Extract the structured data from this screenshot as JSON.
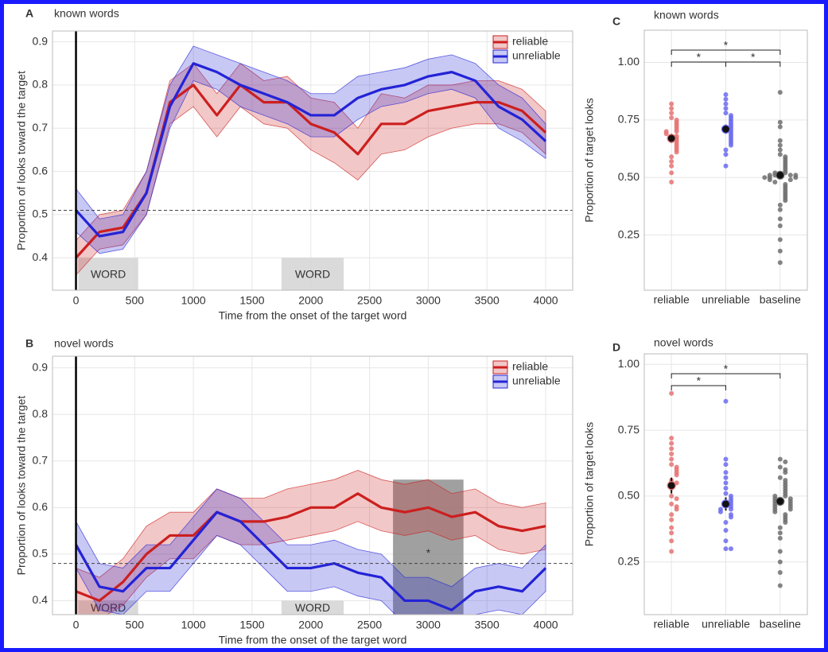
{
  "chart_data": [
    {
      "type": "line",
      "panel": "A",
      "title": "known words",
      "xlabel": "Time from the onset of the target word",
      "ylabel": "Proportion of looks toward the target",
      "x": [
        0,
        200,
        400,
        600,
        800,
        1000,
        1200,
        1400,
        1600,
        1800,
        2000,
        2200,
        2400,
        2600,
        2800,
        3000,
        3200,
        3400,
        3600,
        3800,
        4000
      ],
      "xlim": [
        -200,
        4230
      ],
      "xticks": [
        0,
        500,
        1000,
        1500,
        2000,
        2500,
        3000,
        3500,
        4000
      ],
      "ylim": [
        0.325,
        0.925
      ],
      "yticks": [
        0.4,
        0.5,
        0.6,
        0.7,
        0.8,
        0.9
      ],
      "grid": true,
      "legend": "top-right",
      "reference_line": 0.51,
      "onset_line": 0,
      "regions": [
        {
          "label": "WORD",
          "x": [
            20,
            530
          ],
          "y": [
            0.325,
            0.4
          ],
          "color": "#d4d4d4"
        },
        {
          "label": "WORD",
          "x": [
            1750,
            2280
          ],
          "y": [
            0.325,
            0.4
          ],
          "color": "#d4d4d4"
        }
      ],
      "series": [
        {
          "name": "reliable",
          "color": "#cc1f1f",
          "values": [
            0.4,
            0.46,
            0.47,
            0.55,
            0.76,
            0.8,
            0.73,
            0.8,
            0.76,
            0.76,
            0.71,
            0.69,
            0.64,
            0.71,
            0.71,
            0.74,
            0.75,
            0.76,
            0.76,
            0.74,
            0.69
          ],
          "lower": [
            0.36,
            0.42,
            0.43,
            0.5,
            0.71,
            0.75,
            0.68,
            0.75,
            0.71,
            0.7,
            0.65,
            0.62,
            0.58,
            0.64,
            0.65,
            0.68,
            0.7,
            0.71,
            0.71,
            0.69,
            0.64
          ],
          "upper": [
            0.44,
            0.5,
            0.51,
            0.6,
            0.81,
            0.85,
            0.78,
            0.85,
            0.81,
            0.82,
            0.77,
            0.76,
            0.7,
            0.78,
            0.77,
            0.8,
            0.8,
            0.81,
            0.81,
            0.79,
            0.74
          ]
        },
        {
          "name": "unreliable",
          "color": "#2323d6",
          "values": [
            0.51,
            0.45,
            0.46,
            0.55,
            0.75,
            0.85,
            0.83,
            0.8,
            0.78,
            0.76,
            0.73,
            0.73,
            0.77,
            0.79,
            0.8,
            0.82,
            0.83,
            0.81,
            0.75,
            0.72,
            0.67
          ],
          "lower": [
            0.46,
            0.41,
            0.42,
            0.5,
            0.7,
            0.81,
            0.79,
            0.75,
            0.73,
            0.71,
            0.68,
            0.68,
            0.72,
            0.75,
            0.76,
            0.78,
            0.79,
            0.77,
            0.7,
            0.67,
            0.63
          ],
          "upper": [
            0.56,
            0.49,
            0.5,
            0.6,
            0.8,
            0.89,
            0.87,
            0.85,
            0.83,
            0.81,
            0.78,
            0.78,
            0.82,
            0.83,
            0.84,
            0.86,
            0.87,
            0.85,
            0.8,
            0.77,
            0.71
          ]
        }
      ]
    },
    {
      "type": "line",
      "panel": "B",
      "title": "novel words",
      "xlabel": "Time from the onset of the target word",
      "ylabel": "Proportion of looks toward the target",
      "x": [
        0,
        200,
        400,
        600,
        800,
        1000,
        1200,
        1400,
        1600,
        1800,
        2000,
        2200,
        2400,
        2600,
        2800,
        3000,
        3200,
        3400,
        3600,
        3800,
        4000
      ],
      "xlim": [
        -200,
        4230
      ],
      "xticks": [
        0,
        500,
        1000,
        1500,
        2000,
        2500,
        3000,
        3500,
        4000
      ],
      "ylim": [
        0.37,
        0.925
      ],
      "yticks": [
        0.4,
        0.5,
        0.6,
        0.7,
        0.8,
        0.9
      ],
      "grid": true,
      "legend": "top-right",
      "reference_line": 0.48,
      "onset_line": 0,
      "regions": [
        {
          "label": "WORD",
          "x": [
            20,
            530
          ],
          "y": [
            0.37,
            0.4
          ],
          "color": "#d4d4d4"
        },
        {
          "label": "WORD",
          "x": [
            1750,
            2280
          ],
          "y": [
            0.37,
            0.4
          ],
          "color": "#d4d4d4"
        },
        {
          "label": "*",
          "x": [
            2700,
            3300
          ],
          "y": [
            0.37,
            0.66
          ],
          "color": "#8f8f8f"
        }
      ],
      "series": [
        {
          "name": "reliable",
          "color": "#cc1f1f",
          "values": [
            0.42,
            0.4,
            0.44,
            0.5,
            0.54,
            0.54,
            0.59,
            0.57,
            0.57,
            0.58,
            0.6,
            0.6,
            0.63,
            0.6,
            0.59,
            0.6,
            0.58,
            0.59,
            0.56,
            0.55,
            0.56
          ],
          "lower": [
            0.37,
            0.36,
            0.39,
            0.45,
            0.49,
            0.49,
            0.54,
            0.52,
            0.52,
            0.53,
            0.54,
            0.55,
            0.57,
            0.55,
            0.54,
            0.55,
            0.53,
            0.54,
            0.51,
            0.5,
            0.51
          ],
          "upper": [
            0.47,
            0.45,
            0.49,
            0.56,
            0.59,
            0.59,
            0.64,
            0.62,
            0.62,
            0.64,
            0.65,
            0.66,
            0.68,
            0.66,
            0.65,
            0.66,
            0.63,
            0.64,
            0.61,
            0.6,
            0.61
          ]
        },
        {
          "name": "unreliable",
          "color": "#2323d6",
          "values": [
            0.52,
            0.43,
            0.42,
            0.47,
            0.47,
            0.53,
            0.59,
            0.57,
            0.52,
            0.47,
            0.47,
            0.48,
            0.46,
            0.45,
            0.4,
            0.4,
            0.38,
            0.42,
            0.43,
            0.42,
            0.47
          ],
          "lower": [
            0.47,
            0.38,
            0.37,
            0.42,
            0.42,
            0.48,
            0.54,
            0.52,
            0.47,
            0.42,
            0.42,
            0.43,
            0.41,
            0.4,
            0.35,
            0.35,
            0.33,
            0.37,
            0.38,
            0.37,
            0.42
          ],
          "upper": [
            0.57,
            0.48,
            0.47,
            0.52,
            0.52,
            0.58,
            0.64,
            0.62,
            0.57,
            0.52,
            0.52,
            0.53,
            0.51,
            0.5,
            0.45,
            0.45,
            0.43,
            0.47,
            0.48,
            0.47,
            0.52
          ]
        }
      ]
    },
    {
      "type": "dot",
      "panel": "C",
      "title": "known words",
      "ylabel": "Proportion of target looks",
      "ylim": [
        0.01,
        1.14
      ],
      "yticks": [
        0.25,
        {
          "value": 0.5,
          "label": "0.50"
        },
        0.75,
        {
          "value": 1,
          "label": "1.00"
        }
      ],
      "grid": true,
      "groups": [
        {
          "name": "reliable",
          "color": "#e57373",
          "mean": 0.67,
          "se": 0.02,
          "points": [
            0.82,
            0.8,
            0.78,
            0.76,
            0.75,
            0.74,
            0.73,
            0.72,
            0.71,
            0.7,
            0.7,
            0.69,
            0.68,
            0.67,
            0.66,
            0.65,
            0.64,
            0.63,
            0.62,
            0.61,
            0.59,
            0.57,
            0.55,
            0.52,
            0.48
          ]
        },
        {
          "name": "unreliable",
          "color": "#6b6bef",
          "mean": 0.71,
          "se": 0.02,
          "points": [
            0.86,
            0.84,
            0.82,
            0.8,
            0.78,
            0.77,
            0.76,
            0.75,
            0.74,
            0.73,
            0.72,
            0.71,
            0.7,
            0.69,
            0.68,
            0.67,
            0.66,
            0.65,
            0.64,
            0.62,
            0.6,
            0.55
          ]
        },
        {
          "name": "baseline",
          "color": "#6e6e6e",
          "mean": 0.51,
          "se": 0.015,
          "points": [
            0.87,
            0.74,
            0.72,
            0.66,
            0.64,
            0.62,
            0.6,
            0.59,
            0.58,
            0.57,
            0.56,
            0.55,
            0.54,
            0.53,
            0.52,
            0.52,
            0.51,
            0.51,
            0.51,
            0.51,
            0.5,
            0.5,
            0.5,
            0.49,
            0.49,
            0.48,
            0.47,
            0.46,
            0.45,
            0.44,
            0.43,
            0.42,
            0.41,
            0.4,
            0.38,
            0.36,
            0.32,
            0.29,
            0.23,
            0.18,
            0.13
          ]
        }
      ],
      "comparisons": [
        {
          "between": [
            "reliable",
            "baseline"
          ],
          "label": "*"
        },
        {
          "between": [
            "reliable",
            "unreliable"
          ],
          "label": "*"
        },
        {
          "between": [
            "unreliable",
            "baseline"
          ],
          "label": "*"
        }
      ]
    },
    {
      "type": "dot",
      "panel": "D",
      "title": "novel words",
      "ylabel": "Proportion of target looks",
      "ylim": [
        0.05,
        1.04
      ],
      "yticks": [
        0.25,
        {
          "value": 0.5,
          "label": "0.50"
        },
        0.75,
        {
          "value": 1,
          "label": "1.00"
        }
      ],
      "grid": true,
      "groups": [
        {
          "name": "reliable",
          "color": "#e57373",
          "mean": 0.54,
          "se": 0.03,
          "points": [
            0.89,
            0.72,
            0.7,
            0.68,
            0.66,
            0.64,
            0.62,
            0.61,
            0.6,
            0.59,
            0.58,
            0.56,
            0.55,
            0.53,
            0.5,
            0.49,
            0.47,
            0.46,
            0.45,
            0.43,
            0.41,
            0.38,
            0.36,
            0.33,
            0.29
          ]
        },
        {
          "name": "unreliable",
          "color": "#6b6bef",
          "mean": 0.47,
          "se": 0.025,
          "points": [
            0.86,
            0.64,
            0.62,
            0.59,
            0.57,
            0.55,
            0.53,
            0.51,
            0.5,
            0.49,
            0.48,
            0.47,
            0.46,
            0.45,
            0.45,
            0.44,
            0.43,
            0.42,
            0.4,
            0.37,
            0.33,
            0.3,
            0.3
          ]
        },
        {
          "name": "baseline",
          "color": "#6e6e6e",
          "mean": 0.48,
          "se": 0.012,
          "points": [
            0.64,
            0.63,
            0.61,
            0.6,
            0.59,
            0.57,
            0.56,
            0.55,
            0.54,
            0.53,
            0.52,
            0.51,
            0.5,
            0.5,
            0.49,
            0.49,
            0.48,
            0.48,
            0.47,
            0.47,
            0.46,
            0.46,
            0.45,
            0.45,
            0.44,
            0.43,
            0.42,
            0.41,
            0.4,
            0.38,
            0.36,
            0.34,
            0.29,
            0.25,
            0.21,
            0.16
          ]
        }
      ],
      "comparisons": [
        {
          "between": [
            "reliable",
            "unreliable"
          ],
          "label": "*"
        },
        {
          "between": [
            "reliable",
            "baseline"
          ],
          "label": "*"
        }
      ]
    }
  ]
}
